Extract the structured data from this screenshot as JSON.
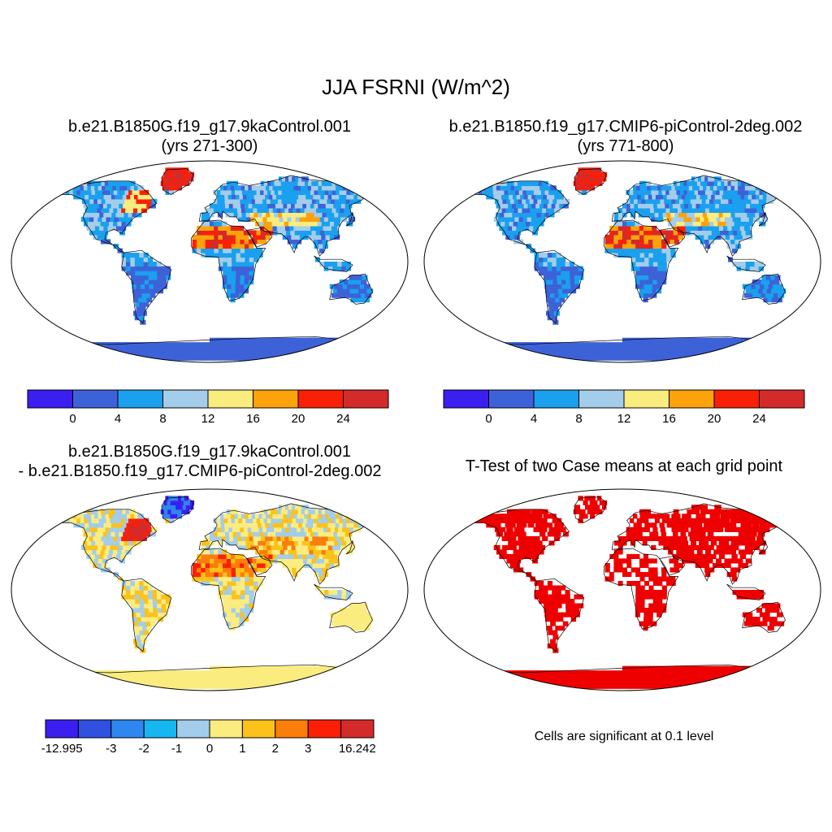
{
  "figure": {
    "title": "JJA FSRNI (W/m^2)",
    "panels": [
      {
        "title_line1": "b.e21.B1850G.f19_g17.9kaControl.001",
        "title_line2": "(yrs 271-300)",
        "colorbar_labels": [
          "0",
          "4",
          "8",
          "12",
          "16",
          "20",
          "24"
        ]
      },
      {
        "title_line1": "b.e21.B1850.f19_g17.CMIP6-piControl-2deg.002",
        "title_line2": "(yrs 771-800)",
        "colorbar_labels": [
          "0",
          "4",
          "8",
          "12",
          "16",
          "20",
          "24"
        ]
      },
      {
        "title_line1": "b.e21.B1850G.f19_g17.9kaControl.001",
        "title_line2": "- b.e21.B1850.f19_g17.CMIP6-piControl-2deg.002",
        "colorbar_labels": [
          "-12.995",
          "-3",
          "-2",
          "-1",
          "0",
          "1",
          "2",
          "3",
          "16.242"
        ]
      },
      {
        "title_line1": "T-Test of two Case means at each grid point",
        "note": "Cells are significant at 0.1 level"
      }
    ]
  },
  "colors": {
    "abs_scale": [
      "#3a1ff0",
      "#3d62d8",
      "#1aa0ee",
      "#a3cdea",
      "#fbec80",
      "#fba20c",
      "#fb1f05",
      "#d42a2a"
    ],
    "diff_scale": [
      "#3a1ff0",
      "#3050e0",
      "#2e86ef",
      "#16b7f0",
      "#a3cdea",
      "#fbec80",
      "#fbc21a",
      "#fb7d0a",
      "#fb1f05",
      "#d42a2a"
    ],
    "significance": "#ee0000",
    "ocean": "#ffffff",
    "coastline": "#000000"
  }
}
